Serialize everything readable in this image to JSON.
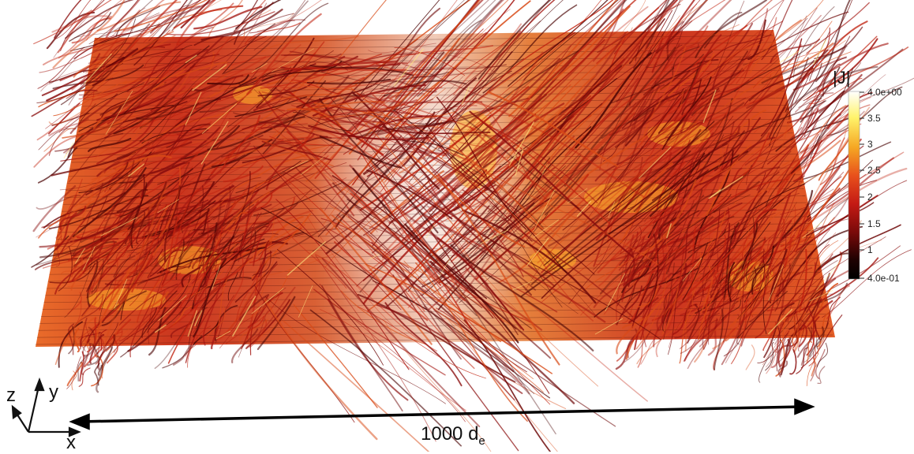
{
  "colorbar": {
    "title": "|J|",
    "ticks": [
      "4.0e+00",
      "3.5",
      "3",
      "2.5",
      "2",
      "1.5",
      "1",
      "4.0e-01"
    ],
    "stops": [
      "#ffffff",
      "#fff36a",
      "#f5a623",
      "#e8501c",
      "#c41a14",
      "#7a0a0a",
      "#1e0202",
      "#000000"
    ]
  },
  "axes": {
    "x": "x",
    "y": "y",
    "z": "z"
  },
  "scale_bar": {
    "value": "1000",
    "unit_main": "d",
    "unit_sub": "e"
  },
  "palette": {
    "sheet": "#e24a1a",
    "filament": "#8a0d0d",
    "hot": "#ffb02a",
    "bright": "#ffe680"
  }
}
